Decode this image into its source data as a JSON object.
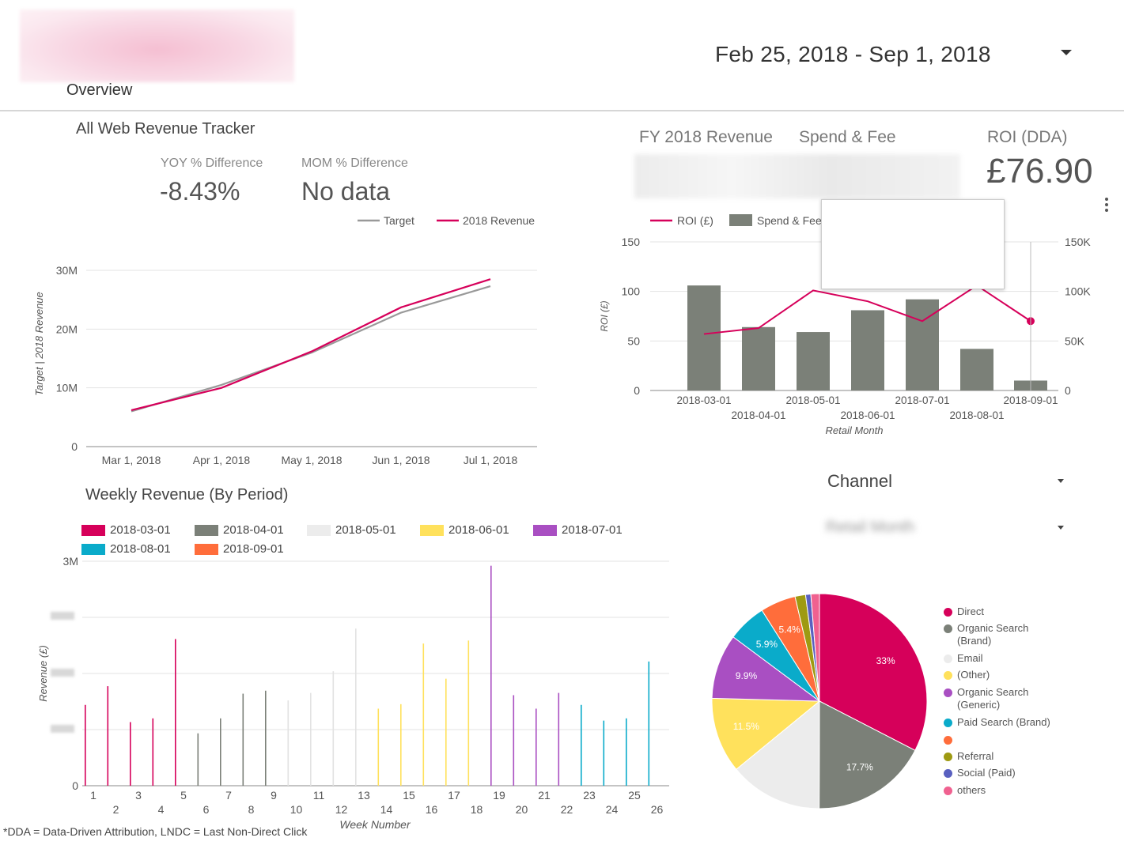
{
  "header": {
    "tab_label": "Overview",
    "date_range": "Feb 25, 2018 - Sep 1, 2018"
  },
  "tracker": {
    "title": "All Web Revenue Tracker",
    "yoy_label": "YOY % Difference",
    "yoy_value": "-8.43%",
    "mom_label": "MOM % Difference",
    "mom_value": "No data"
  },
  "kpis": {
    "fy_revenue_label": "FY 2018 Revenue",
    "spend_fee_label": "Spend & Fee",
    "roi_label": "ROI (DDA)",
    "roi_value": "£76.90"
  },
  "weekly": {
    "title": "Weekly Revenue (By Period)"
  },
  "channel_filter": {
    "label": "Channel"
  },
  "footnote": "*DDA = Data-Driven Attribution, LNDC = Last Non-Direct Click",
  "colors": {
    "magenta": "#d6005a",
    "grey": "#7b8078",
    "light": "#ececec",
    "yellow": "#ffe15c",
    "purple": "#a94fc2",
    "teal": "#0aabca",
    "orange": "#ff6d3b",
    "olive": "#9e9a12",
    "indigo": "#5960c0",
    "pink": "#f06190"
  },
  "chart_data": [
    {
      "id": "revenue-tracker",
      "type": "line",
      "title": "",
      "xlabel": "",
      "ylabel": "Target | 2018 Revenue",
      "x": [
        "Mar 1, 2018",
        "Apr 1, 2018",
        "May 1, 2018",
        "Jun 1, 2018",
        "Jul 1, 2018"
      ],
      "x_ticks": [
        "Mar 1, 2018",
        "Apr 1, 2018",
        "May 1, 2018",
        "Jun 1, 2018",
        "Jul 1, 2018"
      ],
      "y_ticks": [
        "0",
        "10M",
        "20M",
        "30M"
      ],
      "ylim": [
        0,
        30000000
      ],
      "series": [
        {
          "name": "Target",
          "color": "#999999",
          "values": [
            6000000,
            10500000,
            16000000,
            22800000,
            27300000
          ]
        },
        {
          "name": "2018 Revenue",
          "color": "#d6005a",
          "values": [
            6200000,
            10000000,
            16200000,
            23700000,
            28500000
          ]
        }
      ],
      "legend": "top-right",
      "grid": true
    },
    {
      "id": "roi-spend",
      "type": "bar",
      "xlabel": "Retail Month",
      "ylabel": "ROI (£)",
      "categories": [
        "2018-03-01",
        "2018-04-01",
        "2018-05-01",
        "2018-06-01",
        "2018-07-01",
        "2018-08-01",
        "2018-09-01"
      ],
      "y_ticks": [
        "0",
        "50",
        "100",
        "150"
      ],
      "y2_ticks": [
        "0",
        "50K",
        "100K",
        "150K"
      ],
      "ylim": [
        0,
        150
      ],
      "y2lim": [
        0,
        150000
      ],
      "series": [
        {
          "name": "Spend & Fee",
          "type": "bar",
          "axis": "right",
          "color": "#7b8078",
          "values": [
            106000,
            64000,
            59000,
            81000,
            92000,
            42000,
            10000
          ]
        },
        {
          "name": "ROI (£)",
          "type": "line",
          "axis": "left",
          "color": "#d6005a",
          "values": [
            57,
            63,
            101,
            90,
            70,
            106,
            70
          ]
        }
      ],
      "legend": "top-left",
      "grid": true
    },
    {
      "id": "weekly-revenue",
      "type": "bar",
      "xlabel": "Week Number",
      "ylabel": "Revenue (£)",
      "y_ticks": [
        "0",
        "3M"
      ],
      "ylim": [
        0,
        3000000
      ],
      "categories": [
        "1",
        "2",
        "3",
        "4",
        "5",
        "6",
        "7",
        "8",
        "9",
        "10",
        "11",
        "12",
        "13",
        "14",
        "15",
        "16",
        "17",
        "18",
        "19",
        "20",
        "21",
        "22",
        "23",
        "24",
        "25",
        "26"
      ],
      "periods": [
        {
          "name": "2018-03-01",
          "color": "#d6005a"
        },
        {
          "name": "2018-04-01",
          "color": "#7b8078"
        },
        {
          "name": "2018-05-01",
          "color": "#ececec"
        },
        {
          "name": "2018-06-01",
          "color": "#ffe15c"
        },
        {
          "name": "2018-07-01",
          "color": "#a94fc2"
        },
        {
          "name": "2018-08-01",
          "color": "#0aabca"
        },
        {
          "name": "2018-09-01",
          "color": "#ff6d3b"
        }
      ],
      "bars": [
        {
          "week": 1,
          "period": 0,
          "values": [
            1080000,
            0
          ]
        },
        {
          "week": 2,
          "period": 0,
          "values": [
            0,
            1330000
          ]
        },
        {
          "week": 3,
          "period": 0,
          "values": [
            850000,
            0
          ]
        },
        {
          "week": 4,
          "period": 0,
          "values": [
            0,
            900000
          ]
        },
        {
          "week": 5,
          "period": 0,
          "values": [
            1960000,
            0
          ]
        },
        {
          "week": 6,
          "period": 1,
          "values": [
            700000,
            0
          ]
        },
        {
          "week": 7,
          "period": 1,
          "values": [
            900000,
            0
          ]
        },
        {
          "week": 8,
          "period": 1,
          "values": [
            1230000,
            0
          ]
        },
        {
          "week": 9,
          "period": 1,
          "values": [
            1270000,
            0
          ]
        },
        {
          "week": 10,
          "period": 2,
          "values": [
            1140000,
            0
          ]
        },
        {
          "week": 11,
          "period": 2,
          "values": [
            1240000,
            0
          ]
        },
        {
          "week": 12,
          "period": 2,
          "values": [
            1530000,
            0
          ]
        },
        {
          "week": 13,
          "period": 2,
          "values": [
            2100000,
            0
          ]
        },
        {
          "week": 14,
          "period": 3,
          "values": [
            1030000,
            0
          ]
        },
        {
          "week": 15,
          "period": 3,
          "values": [
            1090000,
            0
          ]
        },
        {
          "week": 16,
          "period": 3,
          "values": [
            1900000,
            0
          ]
        },
        {
          "week": 17,
          "period": 3,
          "values": [
            1430000,
            0
          ]
        },
        {
          "week": 18,
          "period": 3,
          "values": [
            1940000,
            0
          ]
        },
        {
          "week": 19,
          "period": 4,
          "values": [
            2940000,
            0
          ]
        },
        {
          "week": 20,
          "period": 4,
          "values": [
            1210000,
            0
          ]
        },
        {
          "week": 21,
          "period": 4,
          "values": [
            1030000,
            0
          ]
        },
        {
          "week": 22,
          "period": 4,
          "values": [
            1240000,
            0
          ]
        },
        {
          "week": 23,
          "period": 5,
          "values": [
            1080000,
            0
          ]
        },
        {
          "week": 24,
          "period": 5,
          "values": [
            870000,
            0
          ]
        },
        {
          "week": 25,
          "period": 5,
          "values": [
            900000,
            0
          ]
        },
        {
          "week": 26,
          "period": 5,
          "values": [
            1660000,
            0
          ]
        }
      ],
      "legend": "top",
      "grid": true
    },
    {
      "id": "channel-pie",
      "type": "pie",
      "slices": [
        {
          "label": "Direct",
          "value": 33.0,
          "display": "33%",
          "color": "#d6005a"
        },
        {
          "label": "Organic Search (Brand)",
          "value": 17.7,
          "display": "17.7%",
          "color": "#7b8078"
        },
        {
          "label": "Email",
          "value": 14.2,
          "display": "",
          "color": "#ececec"
        },
        {
          "label": "(Other)",
          "value": 11.5,
          "display": "11.5%",
          "color": "#ffe15c"
        },
        {
          "label": "Organic Search (Generic)",
          "value": 9.9,
          "display": "9.9%",
          "color": "#a94fc2"
        },
        {
          "label": "Paid Search (Brand)",
          "value": 5.9,
          "display": "5.9%",
          "color": "#0aabca"
        },
        {
          "label": "",
          "value": 5.4,
          "display": "5.4%",
          "color": "#ff6d3b"
        },
        {
          "label": "Referral",
          "value": 1.6,
          "display": "",
          "color": "#9e9a12"
        },
        {
          "label": "Social (Paid)",
          "value": 0.8,
          "display": "",
          "color": "#5960c0"
        },
        {
          "label": "others",
          "value": 1.3,
          "display": "",
          "color": "#f06190"
        }
      ],
      "legend": "right"
    }
  ]
}
